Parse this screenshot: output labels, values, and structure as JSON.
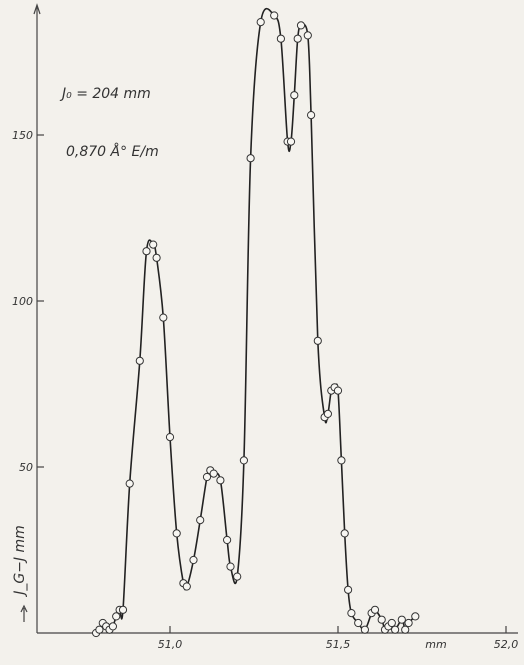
{
  "chart_data": {
    "type": "line",
    "title": "",
    "xlabel": "mm",
    "ylabel": "J_G−J mm",
    "annotations": [
      "J₀ = 204 mm",
      "0,870 Å° E/m"
    ],
    "xlim": [
      50.75,
      52.0
    ],
    "ylim": [
      0,
      190
    ],
    "x_ticks": [
      51.0,
      51.5,
      52.0
    ],
    "x_tick_labels": [
      "51,0",
      "51,5",
      "52,0"
    ],
    "y_ticks": [
      50,
      100,
      150
    ],
    "y_tick_labels": [
      "50",
      "100",
      "150"
    ],
    "grid": false,
    "legend": "none",
    "series": [
      {
        "x": [
          50.78,
          50.79,
          50.8,
          50.81,
          50.82,
          50.83,
          50.84,
          50.85,
          50.86,
          50.88,
          50.91,
          50.93,
          50.95,
          50.96,
          50.98,
          51.0,
          51.02,
          51.04,
          51.05,
          51.07,
          51.09,
          51.11,
          51.12,
          51.13,
          51.15,
          51.17,
          51.18,
          51.2,
          51.22,
          51.24,
          51.27,
          51.31,
          51.33,
          51.35,
          51.36,
          51.37,
          51.38,
          51.39,
          51.41,
          51.42,
          51.44,
          51.46,
          51.47,
          51.48,
          51.49,
          51.5,
          51.51,
          51.52,
          51.53,
          51.54,
          51.56,
          51.58,
          51.6,
          51.61,
          51.63,
          51.64,
          51.65,
          51.66,
          51.67,
          51.69,
          51.7,
          51.71,
          51.73
        ],
        "y": [
          0,
          1,
          3,
          2,
          1,
          2,
          5,
          7,
          7,
          45,
          82,
          115,
          117,
          113,
          95,
          59,
          30,
          15,
          14,
          22,
          34,
          47,
          49,
          48,
          46,
          28,
          20,
          17,
          52,
          143,
          184,
          186,
          179,
          148,
          148,
          162,
          179,
          183,
          180,
          156,
          88,
          65,
          66,
          73,
          74,
          73,
          52,
          30,
          13,
          6,
          3,
          1,
          6,
          7,
          4,
          1,
          2,
          3,
          1,
          4,
          1,
          3,
          5
        ]
      }
    ]
  }
}
